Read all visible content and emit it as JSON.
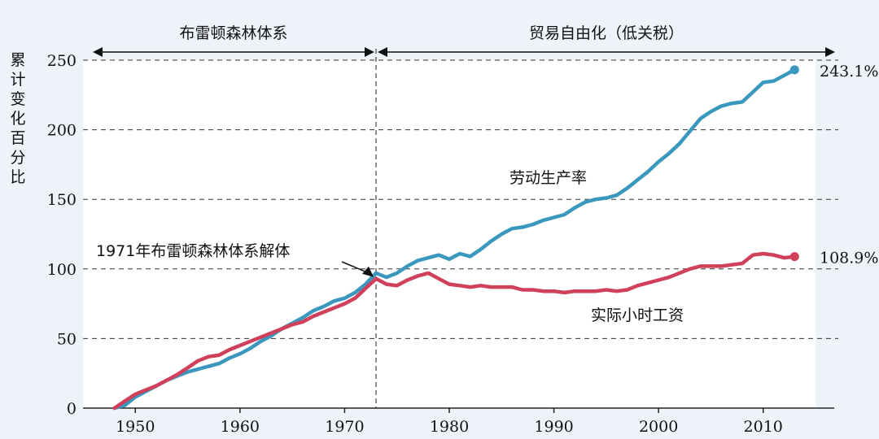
{
  "chart_data": {
    "type": "line",
    "title": "",
    "xlabel": "",
    "ylabel": "累计变化百分比",
    "xlim": [
      1945,
      2015
    ],
    "ylim": [
      0,
      250
    ],
    "x_ticks": [
      "1950",
      "1960",
      "1970",
      "1980",
      "1990",
      "2000",
      "2010"
    ],
    "y_ticks": [
      "0",
      "50",
      "100",
      "150",
      "200",
      "250"
    ],
    "grid": "horizontal dashed",
    "periods": [
      {
        "label": "布雷顿森林体系",
        "start": 1945,
        "end": 1973
      },
      {
        "label": "贸易自由化（低关税）",
        "start": 1973,
        "end": 2015
      }
    ],
    "annotation": {
      "text": "1971年布雷顿森林体系解体",
      "x": 1973,
      "y": 93
    },
    "series": [
      {
        "name": "劳动生产率",
        "color": "#3a97bd",
        "end_label": "243.1%",
        "x": [
          1948,
          1949,
          1950,
          1951,
          1952,
          1953,
          1954,
          1955,
          1956,
          1957,
          1958,
          1959,
          1960,
          1961,
          1962,
          1963,
          1964,
          1965,
          1966,
          1967,
          1968,
          1969,
          1970,
          1971,
          1972,
          1973,
          1974,
          1975,
          1976,
          1977,
          1978,
          1979,
          1980,
          1981,
          1982,
          1983,
          1984,
          1985,
          1986,
          1987,
          1988,
          1989,
          1990,
          1991,
          1992,
          1993,
          1994,
          1995,
          1996,
          1997,
          1998,
          1999,
          2000,
          2001,
          2002,
          2003,
          2004,
          2005,
          2006,
          2007,
          2008,
          2009,
          2010,
          2011,
          2012,
          2013
        ],
        "y": [
          0,
          2,
          8,
          12,
          16,
          20,
          23,
          26,
          28,
          30,
          32,
          36,
          39,
          43,
          48,
          52,
          57,
          61,
          65,
          70,
          73,
          77,
          79,
          83,
          89,
          97,
          94,
          97,
          102,
          106,
          108,
          110,
          107,
          111,
          109,
          114,
          120,
          125,
          129,
          130,
          132,
          135,
          137,
          139,
          144,
          148,
          150,
          151,
          153,
          158,
          164,
          170,
          177,
          183,
          190,
          199,
          208,
          213,
          217,
          219,
          220,
          227,
          234,
          235,
          239,
          243.1
        ]
      },
      {
        "name": "实际小时工资",
        "color": "#d0405a",
        "end_label": "108.9%",
        "x": [
          1948,
          1949,
          1950,
          1951,
          1952,
          1953,
          1954,
          1955,
          1956,
          1957,
          1958,
          1959,
          1960,
          1961,
          1962,
          1963,
          1964,
          1965,
          1966,
          1967,
          1968,
          1969,
          1970,
          1971,
          1972,
          1973,
          1974,
          1975,
          1976,
          1977,
          1978,
          1979,
          1980,
          1981,
          1982,
          1983,
          1984,
          1985,
          1986,
          1987,
          1988,
          1989,
          1990,
          1991,
          1992,
          1993,
          1994,
          1995,
          1996,
          1997,
          1998,
          1999,
          2000,
          2001,
          2002,
          2003,
          2004,
          2005,
          2006,
          2007,
          2008,
          2009,
          2010,
          2011,
          2012,
          2013
        ],
        "y": [
          0,
          5,
          10,
          13,
          16,
          20,
          24,
          29,
          34,
          37,
          38,
          42,
          45,
          48,
          51,
          54,
          57,
          60,
          62,
          66,
          69,
          72,
          75,
          79,
          86,
          93,
          89,
          88,
          92,
          95,
          97,
          93,
          89,
          88,
          87,
          88,
          87,
          87,
          87,
          85,
          85,
          84,
          84,
          83,
          84,
          84,
          84,
          85,
          84,
          85,
          88,
          90,
          92,
          94,
          97,
          100,
          102,
          102,
          102,
          103,
          104,
          110,
          111,
          110,
          108,
          108.9
        ]
      }
    ]
  }
}
